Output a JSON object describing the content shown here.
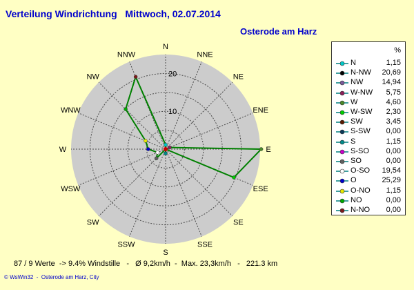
{
  "header": {
    "title": "Verteilung Windrichtung   Mittwoch, 02.07.2014",
    "location": "Osterode am Harz"
  },
  "footer": {
    "stats": "87 / 9 Werte  -> 9.4% Windstille   -   Ø 9,2km/h  -  Max. 23,3km/h   -   221.3 km",
    "credit": "© WsWin32  -  Osterode am Harz, City"
  },
  "legend": {
    "unit": "%",
    "rows": [
      {
        "label": "N",
        "value": "1,15",
        "color": "#00c8c8"
      },
      {
        "label": "N-NW",
        "value": "20,69",
        "color": "#000000"
      },
      {
        "label": "NW",
        "value": "14,94",
        "color": "#7a5a9a"
      },
      {
        "label": "W-NW",
        "value": "5,75",
        "color": "#8b1f5a"
      },
      {
        "label": "W",
        "value": "4,60",
        "color": "#4a8a2a"
      },
      {
        "label": "W-SW",
        "value": "2,30",
        "color": "#00cc00"
      },
      {
        "label": "SW",
        "value": "3,45",
        "color": "#5a1a00"
      },
      {
        "label": "S-SW",
        "value": "0,00",
        "color": "#0a3a5a"
      },
      {
        "label": "S",
        "value": "1,15",
        "color": "#008a8a"
      },
      {
        "label": "S-SO",
        "value": "0,00",
        "color": "#cc00cc"
      },
      {
        "label": "SO",
        "value": "0,00",
        "color": "#606060"
      },
      {
        "label": "O-SO",
        "value": "19,54",
        "color": "#ffffff"
      },
      {
        "label": "O",
        "value": "25,29",
        "color": "#0000cc"
      },
      {
        "label": "O-NO",
        "value": "1,15",
        "color": "#e8e800"
      },
      {
        "label": "NO",
        "value": "0,00",
        "color": "#00aa00"
      },
      {
        "label": "N-NO",
        "value": "0,00",
        "color": "#7a1a1a"
      }
    ]
  },
  "chart_data": {
    "type": "radar",
    "directions": [
      "N",
      "NNE",
      "NE",
      "ENE",
      "E",
      "ESE",
      "SE",
      "SSE",
      "S",
      "SSW",
      "SW",
      "WSW",
      "W",
      "WNW",
      "NW",
      "NNW"
    ],
    "values": [
      1.15,
      0.0,
      0.0,
      1.15,
      25.29,
      19.54,
      0.0,
      0.0,
      1.15,
      0.0,
      3.45,
      2.3,
      4.6,
      5.75,
      14.94,
      20.69
    ],
    "radial_ticks": [
      10,
      20
    ],
    "rmax": 25,
    "unit": "%",
    "line_color": "#008000",
    "grid": true
  }
}
